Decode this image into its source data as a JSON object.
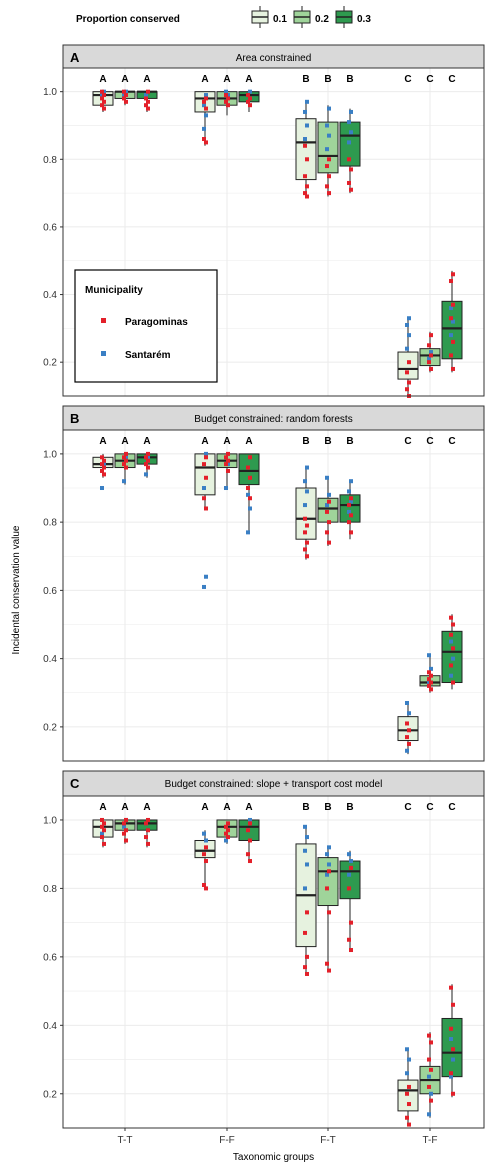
{
  "legend": {
    "title": "Proportion conserved",
    "items": [
      {
        "label": "0.1",
        "color": "#e6f2df"
      },
      {
        "label": "0.2",
        "color": "#9fd49a"
      },
      {
        "label": "0.3",
        "color": "#2e9a4f"
      }
    ]
  },
  "inset_legend": {
    "title": "Municipality",
    "items": [
      {
        "label": "Paragominas",
        "color": "#e3202a"
      },
      {
        "label": "Santarém",
        "color": "#3a7fc4"
      }
    ]
  },
  "axes": {
    "ylabel": "Incidental conservation value",
    "xlabel": "Taxonomic groups",
    "yticks": [
      "0.2",
      "0.4",
      "0.6",
      "0.8",
      "1.0"
    ]
  },
  "colors": {
    "paragominas": "#e3202a",
    "santarem": "#3a7fc4",
    "strip_bg": "#d9d9d9",
    "grid": "#ebebeb"
  },
  "chart_data": [
    {
      "type": "box",
      "panel_letter": "A",
      "title": "Area constrained",
      "categories": [
        "T-T",
        "F-F",
        "F-T",
        "T-F"
      ],
      "ylim": [
        0.1,
        1.07
      ],
      "grid": true,
      "legend": "inset-left",
      "group_letters": [
        [
          "A",
          "A",
          "A"
        ],
        [
          "A",
          "A",
          "A"
        ],
        [
          "B",
          "B",
          "B"
        ],
        [
          "C",
          "C",
          "C"
        ]
      ],
      "series": [
        {
          "name": "0.1",
          "boxes": [
            {
              "q1": 0.96,
              "median": 0.99,
              "q3": 1.0,
              "lo": 0.94,
              "hi": 1.0,
              "p": [
                0.95,
                0.96,
                0.97,
                0.98,
                0.99,
                1.0
              ],
              "s": [
                0.99,
                1.0
              ]
            },
            {
              "q1": 0.94,
              "median": 0.98,
              "q3": 1.0,
              "lo": 0.84,
              "hi": 1.0,
              "p": [
                0.85,
                0.86,
                0.95,
                0.97,
                0.98
              ],
              "s": [
                0.89,
                0.93,
                0.96,
                0.99
              ]
            },
            {
              "q1": 0.74,
              "median": 0.85,
              "q3": 0.92,
              "lo": 0.69,
              "hi": 0.97,
              "p": [
                0.69,
                0.7,
                0.72,
                0.75,
                0.8,
                0.84
              ],
              "s": [
                0.86,
                0.9,
                0.94,
                0.97
              ]
            },
            {
              "q1": 0.15,
              "median": 0.18,
              "q3": 0.23,
              "lo": 0.1,
              "hi": 0.33,
              "p": [
                0.1,
                0.12,
                0.14,
                0.17,
                0.2
              ],
              "s": [
                0.24,
                0.28,
                0.31,
                0.33
              ]
            }
          ]
        },
        {
          "name": "0.2",
          "boxes": [
            {
              "q1": 0.98,
              "median": 1.0,
              "q3": 1.0,
              "lo": 0.96,
              "hi": 1.0,
              "p": [
                0.97,
                0.98,
                0.99,
                1.0
              ],
              "s": [
                0.99,
                1.0
              ]
            },
            {
              "q1": 0.96,
              "median": 0.98,
              "q3": 1.0,
              "lo": 0.93,
              "hi": 1.0,
              "p": [
                0.96,
                0.97,
                0.98,
                0.99
              ],
              "s": [
                0.97,
                0.99,
                1.0
              ]
            },
            {
              "q1": 0.76,
              "median": 0.81,
              "q3": 0.91,
              "lo": 0.69,
              "hi": 0.96,
              "p": [
                0.7,
                0.72,
                0.75,
                0.78,
                0.8
              ],
              "s": [
                0.83,
                0.87,
                0.9,
                0.95
              ]
            },
            {
              "q1": 0.19,
              "median": 0.22,
              "q3": 0.24,
              "lo": 0.17,
              "hi": 0.29,
              "p": [
                0.18,
                0.2,
                0.22,
                0.25,
                0.28
              ],
              "s": [
                0.21,
                0.23
              ]
            }
          ]
        },
        {
          "name": "0.3",
          "boxes": [
            {
              "q1": 0.98,
              "median": 1.0,
              "q3": 1.0,
              "lo": 0.94,
              "hi": 1.0,
              "p": [
                0.95,
                0.96,
                0.97,
                0.98,
                1.0
              ],
              "s": [
                0.99
              ]
            },
            {
              "q1": 0.97,
              "median": 0.99,
              "q3": 1.0,
              "lo": 0.94,
              "hi": 1.0,
              "p": [
                0.96,
                0.97,
                0.98,
                0.99
              ],
              "s": [
                0.97,
                1.0
              ]
            },
            {
              "q1": 0.78,
              "median": 0.87,
              "q3": 0.91,
              "lo": 0.7,
              "hi": 0.95,
              "p": [
                0.71,
                0.73,
                0.77,
                0.8
              ],
              "s": [
                0.85,
                0.88,
                0.91,
                0.94
              ]
            },
            {
              "q1": 0.21,
              "median": 0.3,
              "q3": 0.38,
              "lo": 0.17,
              "hi": 0.47,
              "p": [
                0.18,
                0.22,
                0.26,
                0.33,
                0.37,
                0.44,
                0.46
              ],
              "s": [
                0.28,
                0.32,
                0.36
              ]
            }
          ]
        }
      ]
    },
    {
      "type": "box",
      "panel_letter": "B",
      "title": "Budget constrained: random forests",
      "categories": [
        "T-T",
        "F-F",
        "F-T",
        "T-F"
      ],
      "ylim": [
        0.1,
        1.07
      ],
      "grid": true,
      "group_letters": [
        [
          "A",
          "A",
          "A"
        ],
        [
          "A",
          "A",
          "A"
        ],
        [
          "B",
          "B",
          "B"
        ],
        [
          "C",
          "C",
          "C"
        ]
      ],
      "series": [
        {
          "name": "0.1",
          "boxes": [
            {
              "q1": 0.96,
              "median": 0.97,
              "q3": 0.99,
              "lo": 0.93,
              "hi": 1.0,
              "p": [
                0.94,
                0.95,
                0.96,
                0.97,
                0.98,
                0.99
              ],
              "s": [
                0.9,
                0.97
              ]
            },
            {
              "q1": 0.88,
              "median": 0.96,
              "q3": 1.0,
              "lo": 0.84,
              "hi": 1.0,
              "p": [
                0.84,
                0.87,
                0.93,
                0.97,
                0.99
              ],
              "s": [
                0.61,
                0.64,
                0.9,
                1.0
              ]
            },
            {
              "q1": 0.75,
              "median": 0.81,
              "q3": 0.9,
              "lo": 0.69,
              "hi": 0.96,
              "p": [
                0.7,
                0.72,
                0.74,
                0.77,
                0.79,
                0.81
              ],
              "s": [
                0.85,
                0.89,
                0.92,
                0.96
              ]
            },
            {
              "q1": 0.16,
              "median": 0.19,
              "q3": 0.23,
              "lo": 0.12,
              "hi": 0.27,
              "p": [
                0.15,
                0.17,
                0.19,
                0.21
              ],
              "s": [
                0.13,
                0.24,
                0.27
              ]
            }
          ]
        },
        {
          "name": "0.2",
          "boxes": [
            {
              "q1": 0.96,
              "median": 0.98,
              "q3": 1.0,
              "lo": 0.91,
              "hi": 1.0,
              "p": [
                0.96,
                0.97,
                0.98,
                0.99,
                1.0
              ],
              "s": [
                0.92,
                0.99
              ]
            },
            {
              "q1": 0.96,
              "median": 0.98,
              "q3": 1.0,
              "lo": 0.9,
              "hi": 1.0,
              "p": [
                0.95,
                0.97,
                0.98,
                0.99,
                1.0
              ],
              "s": [
                0.9,
                0.97
              ]
            },
            {
              "q1": 0.8,
              "median": 0.84,
              "q3": 0.87,
              "lo": 0.73,
              "hi": 0.93,
              "p": [
                0.74,
                0.77,
                0.8,
                0.83,
                0.86
              ],
              "s": [
                0.85,
                0.88,
                0.93
              ]
            },
            {
              "q1": 0.32,
              "median": 0.33,
              "q3": 0.35,
              "lo": 0.3,
              "hi": 0.41,
              "p": [
                0.31,
                0.32,
                0.33,
                0.34,
                0.35,
                0.36
              ],
              "s": [
                0.33,
                0.37,
                0.41
              ]
            }
          ]
        },
        {
          "name": "0.3",
          "boxes": [
            {
              "q1": 0.97,
              "median": 0.99,
              "q3": 1.0,
              "lo": 0.93,
              "hi": 1.0,
              "p": [
                0.96,
                0.97,
                0.98,
                0.99,
                1.0
              ],
              "s": [
                0.94,
                0.99
              ]
            },
            {
              "q1": 0.91,
              "median": 0.95,
              "q3": 1.0,
              "lo": 0.77,
              "hi": 1.0,
              "p": [
                0.87,
                0.9,
                0.93,
                0.96,
                0.99
              ],
              "s": [
                0.77,
                0.84,
                0.88
              ]
            },
            {
              "q1": 0.8,
              "median": 0.85,
              "q3": 0.88,
              "lo": 0.75,
              "hi": 0.92,
              "p": [
                0.77,
                0.8,
                0.82,
                0.85,
                0.87
              ],
              "s": [
                0.83,
                0.86,
                0.89,
                0.92
              ]
            },
            {
              "q1": 0.33,
              "median": 0.42,
              "q3": 0.48,
              "lo": 0.31,
              "hi": 0.53,
              "p": [
                0.33,
                0.38,
                0.43,
                0.47,
                0.5,
                0.52
              ],
              "s": [
                0.35,
                0.4,
                0.45
              ]
            }
          ]
        }
      ]
    },
    {
      "type": "box",
      "panel_letter": "C",
      "title": "Budget constrained: slope + transport cost model",
      "categories": [
        "T-T",
        "F-F",
        "F-T",
        "T-F"
      ],
      "ylim": [
        0.1,
        1.07
      ],
      "grid": true,
      "group_letters": [
        [
          "A",
          "A",
          "A"
        ],
        [
          "A",
          "A",
          "A"
        ],
        [
          "B",
          "B",
          "B"
        ],
        [
          "C",
          "C",
          "C"
        ]
      ],
      "series": [
        {
          "name": "0.1",
          "boxes": [
            {
              "q1": 0.95,
              "median": 0.98,
              "q3": 1.0,
              "lo": 0.92,
              "hi": 1.0,
              "p": [
                0.93,
                0.95,
                0.97,
                0.98,
                0.99,
                1.0
              ],
              "s": [
                0.96,
                0.99
              ]
            },
            {
              "q1": 0.89,
              "median": 0.91,
              "q3": 0.94,
              "lo": 0.8,
              "hi": 0.97,
              "p": [
                0.8,
                0.81,
                0.88,
                0.9,
                0.92
              ],
              "s": [
                0.81,
                0.94,
                0.96
              ]
            },
            {
              "q1": 0.63,
              "median": 0.78,
              "q3": 0.93,
              "lo": 0.55,
              "hi": 0.98,
              "p": [
                0.55,
                0.57,
                0.6,
                0.67,
                0.73
              ],
              "s": [
                0.8,
                0.87,
                0.91,
                0.95,
                0.98
              ]
            },
            {
              "q1": 0.15,
              "median": 0.21,
              "q3": 0.24,
              "lo": 0.11,
              "hi": 0.33,
              "p": [
                0.11,
                0.13,
                0.17,
                0.2,
                0.22
              ],
              "s": [
                0.26,
                0.3,
                0.33
              ]
            }
          ]
        },
        {
          "name": "0.2",
          "boxes": [
            {
              "q1": 0.97,
              "median": 0.99,
              "q3": 1.0,
              "lo": 0.93,
              "hi": 1.0,
              "p": [
                0.94,
                0.96,
                0.97,
                0.99,
                1.0
              ],
              "s": [
                0.98,
                1.0
              ]
            },
            {
              "q1": 0.95,
              "median": 0.98,
              "q3": 1.0,
              "lo": 0.93,
              "hi": 1.0,
              "p": [
                0.95,
                0.96,
                0.97,
                0.98,
                0.99
              ],
              "s": [
                0.94,
                0.99
              ]
            },
            {
              "q1": 0.75,
              "median": 0.85,
              "q3": 0.89,
              "lo": 0.56,
              "hi": 0.92,
              "p": [
                0.56,
                0.58,
                0.73,
                0.8,
                0.85
              ],
              "s": [
                0.84,
                0.87,
                0.9,
                0.92
              ]
            },
            {
              "q1": 0.2,
              "median": 0.24,
              "q3": 0.28,
              "lo": 0.13,
              "hi": 0.38,
              "p": [
                0.18,
                0.22,
                0.27,
                0.3,
                0.35,
                0.37
              ],
              "s": [
                0.14,
                0.2,
                0.25
              ]
            }
          ]
        },
        {
          "name": "0.3",
          "boxes": [
            {
              "q1": 0.97,
              "median": 0.99,
              "q3": 1.0,
              "lo": 0.92,
              "hi": 1.0,
              "p": [
                0.93,
                0.95,
                0.97,
                0.99,
                1.0
              ],
              "s": [
                0.99
              ]
            },
            {
              "q1": 0.94,
              "median": 0.98,
              "q3": 1.0,
              "lo": 0.88,
              "hi": 1.0,
              "p": [
                0.88,
                0.9,
                0.94,
                0.97,
                0.99
              ],
              "s": [
                0.97,
                1.0
              ]
            },
            {
              "q1": 0.77,
              "median": 0.85,
              "q3": 0.88,
              "lo": 0.62,
              "hi": 0.91,
              "p": [
                0.62,
                0.65,
                0.7,
                0.8,
                0.86
              ],
              "s": [
                0.84,
                0.88,
                0.9
              ]
            },
            {
              "q1": 0.25,
              "median": 0.32,
              "q3": 0.42,
              "lo": 0.19,
              "hi": 0.52,
              "p": [
                0.2,
                0.26,
                0.33,
                0.39,
                0.46,
                0.51
              ],
              "s": [
                0.25,
                0.3,
                0.36
              ]
            }
          ]
        }
      ]
    }
  ]
}
